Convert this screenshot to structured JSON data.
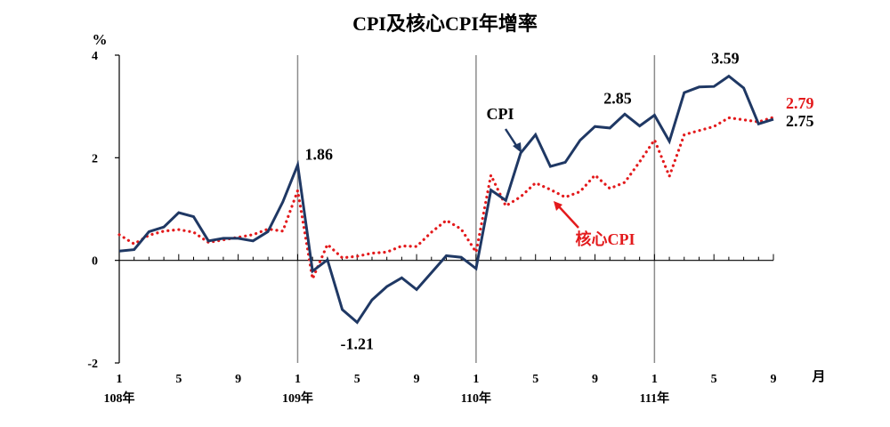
{
  "chart_data": {
    "type": "line",
    "title": "CPI及核心CPI年增率",
    "ylabel": "%",
    "xlabel": "月",
    "ylim": [
      -2,
      4
    ],
    "y_ticks": [
      "4",
      "2",
      "0",
      "-2"
    ],
    "x_tick_labels": [
      "1",
      "5",
      "9",
      "1",
      "5",
      "9",
      "1",
      "5",
      "9",
      "1",
      "5",
      "9"
    ],
    "year_labels": [
      "108年",
      "109年",
      "110年",
      "111年"
    ],
    "grid": "vertical lines at each January",
    "series": [
      {
        "name": "CPI",
        "color": "#1f3864",
        "style": "solid",
        "values": [
          0.18,
          0.21,
          0.56,
          0.65,
          0.93,
          0.85,
          0.38,
          0.43,
          0.43,
          0.38,
          0.56,
          1.14,
          1.86,
          -0.21,
          0.01,
          -0.96,
          -1.21,
          -0.77,
          -0.51,
          -0.34,
          -0.57,
          -0.24,
          0.09,
          0.06,
          -0.16,
          1.37,
          1.17,
          2.09,
          2.45,
          1.83,
          1.91,
          2.34,
          2.61,
          2.58,
          2.85,
          2.62,
          2.83,
          2.32,
          3.27,
          3.38,
          3.39,
          3.59,
          3.36,
          2.66,
          2.75
        ]
      },
      {
        "name": "核心CPI",
        "color": "#e31a1c",
        "style": "dotted",
        "values": [
          0.5,
          0.32,
          0.49,
          0.57,
          0.6,
          0.55,
          0.35,
          0.4,
          0.45,
          0.5,
          0.61,
          0.57,
          1.36,
          -0.36,
          0.31,
          0.05,
          0.08,
          0.14,
          0.16,
          0.28,
          0.27,
          0.55,
          0.78,
          0.61,
          0.16,
          1.66,
          1.06,
          1.24,
          1.51,
          1.38,
          1.23,
          1.34,
          1.66,
          1.4,
          1.52,
          1.92,
          2.35,
          1.64,
          2.45,
          2.53,
          2.61,
          2.78,
          2.74,
          2.7,
          2.79
        ]
      }
    ],
    "annotations": [
      {
        "text": "1.86",
        "series": "CPI",
        "index": 12
      },
      {
        "text": "-1.21",
        "series": "CPI",
        "index": 16
      },
      {
        "text": "2.85",
        "series": "CPI",
        "index": 34
      },
      {
        "text": "3.59",
        "series": "CPI",
        "index": 41
      },
      {
        "text": "2.75",
        "series": "CPI",
        "index": 44
      },
      {
        "text": "2.79",
        "series": "核心CPI",
        "index": 44
      }
    ],
    "series_labels": {
      "cpi": "CPI",
      "core": "核心CPI"
    }
  }
}
